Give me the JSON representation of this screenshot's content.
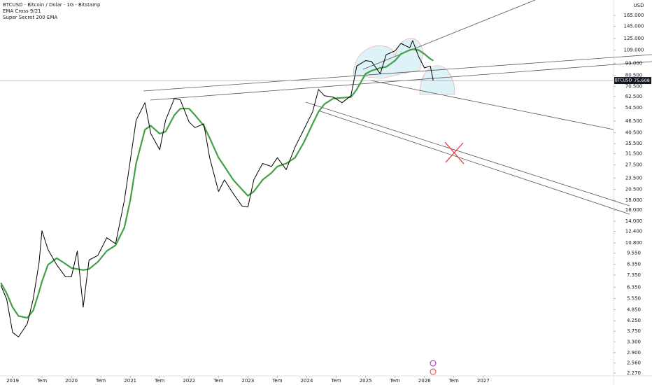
{
  "header": {
    "title": "BTCUSD · Bitcoin / Dolar · 1G · Bitstamp",
    "indicators": [
      "EMA Cross 9/21",
      "Super Secret 200 EMA"
    ],
    "currency": "USD"
  },
  "chart_data": {
    "type": "line",
    "log_scale": true,
    "symbol": "BTCUSD",
    "last_price": {
      "value": 75608,
      "label": "75.608"
    },
    "x": [
      2018.8,
      2018.9,
      2019.0,
      2019.1,
      2019.25,
      2019.35,
      2019.45,
      2019.5,
      2019.6,
      2019.75,
      2019.9,
      2020.0,
      2020.1,
      2020.2,
      2020.3,
      2020.45,
      2020.6,
      2020.75,
      2020.9,
      2021.0,
      2021.1,
      2021.25,
      2021.35,
      2021.5,
      2021.6,
      2021.75,
      2021.85,
      2022.0,
      2022.1,
      2022.25,
      2022.35,
      2022.5,
      2022.6,
      2022.75,
      2022.9,
      2023.0,
      2023.1,
      2023.25,
      2023.4,
      2023.5,
      2023.65,
      2023.8,
      2023.95,
      2024.1,
      2024.2,
      2024.3,
      2024.45,
      2024.6,
      2024.75,
      2024.85,
      2025.0,
      2025.1,
      2025.25,
      2025.35,
      2025.5,
      2025.6,
      2025.75,
      2025.8,
      2025.9,
      2026.0,
      2026.1,
      2026.15
    ],
    "series": [
      {
        "name": "BTCUSD",
        "color": "#000000",
        "values": [
          6500,
          5500,
          3700,
          3500,
          4100,
          5500,
          8500,
          12500,
          10000,
          8300,
          7200,
          7200,
          9800,
          5000,
          8800,
          9300,
          11500,
          10700,
          18000,
          29000,
          47000,
          58000,
          40000,
          33000,
          47000,
          61000,
          60000,
          46000,
          43000,
          45000,
          30000,
          20000,
          23000,
          19500,
          16800,
          16600,
          23000,
          28000,
          27000,
          30000,
          26000,
          34000,
          42000,
          52000,
          68000,
          63000,
          62000,
          58000,
          63000,
          90000,
          96000,
          95000,
          82000,
          103000,
          108000,
          118000,
          112000,
          122000,
          101000,
          88000,
          90000,
          75608
        ]
      },
      {
        "name": "EMA",
        "color": "#43a047",
        "values": [
          6700,
          5900,
          5000,
          4500,
          4400,
          4800,
          6000,
          6800,
          8300,
          9000,
          8400,
          8000,
          7900,
          7800,
          7900,
          8600,
          9800,
          10500,
          13000,
          18000,
          28000,
          42000,
          44000,
          40000,
          41000,
          50000,
          54000,
          54000,
          50000,
          44000,
          38000,
          30000,
          27000,
          23000,
          20500,
          19000,
          20000,
          23000,
          25000,
          27000,
          28000,
          30000,
          36000,
          45000,
          52000,
          57000,
          61000,
          61500,
          62000,
          68000,
          82000,
          85000,
          88000,
          89000,
          96000,
          104000,
          109000,
          110000,
          109000,
          104000,
          98000,
          96000
        ]
      }
    ],
    "xlim": [
      2018.786,
      2029.19
    ],
    "xticks": [
      {
        "value": 2019,
        "label": "2019"
      },
      {
        "value": 2019.5,
        "label": "Tem"
      },
      {
        "value": 2020,
        "label": "2020"
      },
      {
        "value": 2020.5,
        "label": "Tem"
      },
      {
        "value": 2021,
        "label": "2021"
      },
      {
        "value": 2021.5,
        "label": "Tem"
      },
      {
        "value": 2022,
        "label": "2022"
      },
      {
        "value": 2022.5,
        "label": "Tem"
      },
      {
        "value": 2023,
        "label": "2023"
      },
      {
        "value": 2023.5,
        "label": "Tem"
      },
      {
        "value": 2024,
        "label": "2024"
      },
      {
        "value": 2024.5,
        "label": "Tem"
      },
      {
        "value": 2025,
        "label": "2025"
      },
      {
        "value": 2025.5,
        "label": "Tem"
      },
      {
        "value": 2026,
        "label": "2026"
      },
      {
        "value": 2026.5,
        "label": "Tem"
      },
      {
        "value": 2027,
        "label": "2027"
      }
    ],
    "ylim": [
      2195,
      198500
    ],
    "yticks": [
      {
        "value": 165000,
        "label": "165.000"
      },
      {
        "value": 145000,
        "label": "145.000"
      },
      {
        "value": 125000,
        "label": "125.000"
      },
      {
        "value": 109000,
        "label": "109.000"
      },
      {
        "value": 93000,
        "label": "93.000"
      },
      {
        "value": 80500,
        "label": "80.500"
      },
      {
        "value": 70500,
        "label": "70.500"
      },
      {
        "value": 62500,
        "label": "62.500"
      },
      {
        "value": 54500,
        "label": "54.500"
      },
      {
        "value": 46500,
        "label": "46.500"
      },
      {
        "value": 40500,
        "label": "40.500"
      },
      {
        "value": 35500,
        "label": "35.500"
      },
      {
        "value": 31500,
        "label": "31.500"
      },
      {
        "value": 27500,
        "label": "27.500"
      },
      {
        "value": 23500,
        "label": "23.500"
      },
      {
        "value": 20500,
        "label": "20.500"
      },
      {
        "value": 18000,
        "label": "18.000"
      },
      {
        "value": 16000,
        "label": "16.000"
      },
      {
        "value": 14000,
        "label": "14.000"
      },
      {
        "value": 12400,
        "label": "12.400"
      },
      {
        "value": 10800,
        "label": "10.800"
      },
      {
        "value": 9550,
        "label": "9.550"
      },
      {
        "value": 8350,
        "label": "8.350"
      },
      {
        "value": 7350,
        "label": "7.350"
      },
      {
        "value": 6350,
        "label": "6.350"
      },
      {
        "value": 5550,
        "label": "5.550"
      },
      {
        "value": 4850,
        "label": "4.850"
      },
      {
        "value": 4250,
        "label": "4.250"
      },
      {
        "value": 3750,
        "label": "3.750"
      },
      {
        "value": 3300,
        "label": "3.300"
      },
      {
        "value": 2900,
        "label": "2.900"
      },
      {
        "value": 2560,
        "label": "2.560"
      },
      {
        "value": 2270,
        "label": "2.270"
      }
    ],
    "grid": false
  }
}
